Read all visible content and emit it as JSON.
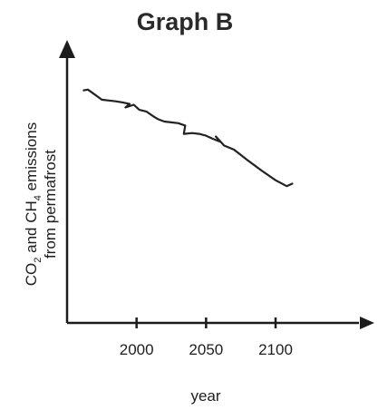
{
  "chart_data": {
    "type": "line",
    "title": "Graph B",
    "xlabel": "year",
    "ylabel_line1": {
      "co": "CO",
      "co_sub": "2",
      "and": " and CH",
      "ch_sub": "4",
      "rest": " emissions"
    },
    "ylabel_line2": "from permafrost",
    "x_ticks": [
      2000,
      2050,
      2100
    ],
    "x_tick_labels": [
      "2000",
      "2050",
      "2100"
    ],
    "xlim": [
      1950,
      2160
    ],
    "ylim": [
      0,
      1
    ],
    "y_values_shown": false,
    "series": [
      {
        "x": [
          1962,
          1965,
          1970,
          1975,
          1980,
          1985,
          1990,
          1995,
          1992,
          1998,
          2002,
          2007,
          2012,
          2015,
          2020,
          2025,
          2030,
          2035,
          2034,
          2040,
          2045,
          2050,
          2055,
          2060,
          2057,
          2063,
          2070,
          2080,
          2090,
          2100,
          2108,
          2112
        ],
        "y": [
          0.872,
          0.875,
          0.856,
          0.837,
          0.834,
          0.831,
          0.827,
          0.821,
          0.808,
          0.818,
          0.799,
          0.793,
          0.775,
          0.765,
          0.755,
          0.752,
          0.749,
          0.74,
          0.709,
          0.712,
          0.709,
          0.702,
          0.69,
          0.68,
          0.699,
          0.665,
          0.65,
          0.61,
          0.571,
          0.535,
          0.513,
          0.522
        ]
      }
    ],
    "colors": {
      "line": "#222222",
      "axes": "#1c1c1c",
      "text": "#1e1e1e"
    }
  }
}
